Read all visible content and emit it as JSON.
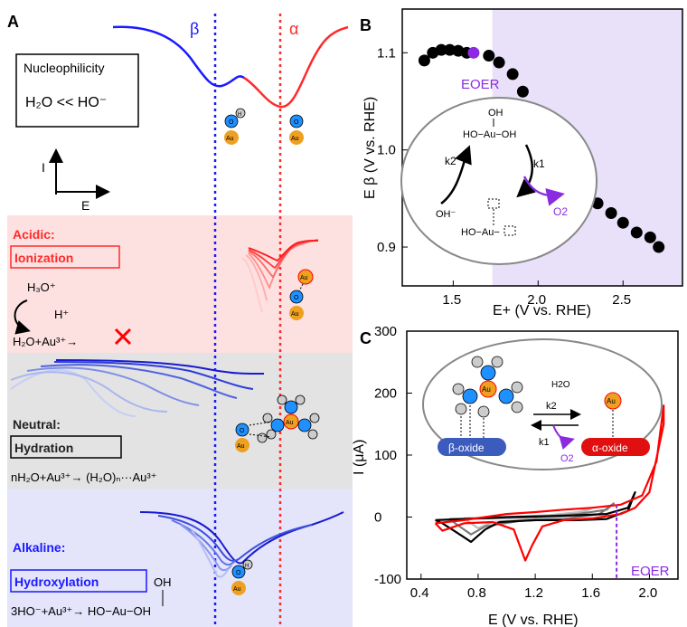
{
  "panel_a": {
    "label": "A",
    "beta": "β",
    "alpha": "α",
    "nucleophilicity_box": {
      "title": "Nucleophilicity",
      "relation": "H₂O << HO⁻"
    },
    "axis_i": "I",
    "axis_e": "E",
    "acidic": {
      "title": "Acidic:",
      "mechanism": "Ionization",
      "h3o": "H₃O⁺",
      "hplus": "H⁺",
      "reaction": "H₂O+Au³⁺→",
      "color": "#ff0000"
    },
    "neutral": {
      "title": "Neutral:",
      "mechanism": "Hydration",
      "reaction": "nH₂O+Au³⁺→ (H₂O)ₙ···Au³⁺"
    },
    "alkaline": {
      "title": "Alkaline:",
      "mechanism": "Hydroxylation",
      "reaction": "3HO⁻+Au³⁺→ HO−Au−OH",
      "oh": "OH",
      "color": "#1a1aff"
    }
  },
  "atoms": {
    "o": "O",
    "h": "H",
    "au": "Au"
  },
  "panel_b": {
    "label": "B",
    "ylabel": "E β (V vs. RHE)",
    "xlabel": "E+ (V vs. RHE)",
    "eoer": "EOER",
    "inset": {
      "oh": "OH",
      "top": "HO−Au−OH",
      "bottom": "HO−Au−",
      "k1": "k1",
      "k2": "k2",
      "ohminus": "OH⁻",
      "o2": "O2"
    },
    "shade_color": "#e9e0f9"
  },
  "panel_c": {
    "label": "C",
    "ylabel": "I (μA)",
    "xlabel": "E (V vs. RHE)",
    "eoer": "EOER",
    "inset": {
      "h2o": "H2O",
      "k2": "k2",
      "k1": "k1",
      "o2": "O2",
      "beta_oxide": "β-oxide",
      "alpha_oxide": "α-oxide"
    }
  },
  "chart_data": [
    {
      "type": "scatter",
      "panel": "B",
      "x": [
        1.33,
        1.38,
        1.43,
        1.48,
        1.53,
        1.58,
        1.62,
        1.71,
        1.77,
        1.85,
        1.91,
        1.98,
        2.06,
        2.13,
        2.2,
        2.28,
        2.35,
        2.43,
        2.5,
        2.58,
        2.66,
        2.71
      ],
      "y": [
        1.092,
        1.1,
        1.103,
        1.103,
        1.102,
        1.1,
        1.1,
        1.097,
        1.09,
        1.078,
        1.06,
        1.04,
        1.02,
        1.0,
        0.98,
        0.96,
        0.945,
        0.935,
        0.925,
        0.915,
        0.91,
        0.9
      ],
      "xlabel": "E+ (V vs. RHE)",
      "ylabel": "E β (V vs. RHE)",
      "xlim": [
        1.2,
        2.85
      ],
      "ylim": [
        0.86,
        1.145
      ],
      "xticks": [
        1.5,
        2.0,
        2.5
      ],
      "yticks": [
        0.9,
        1.0,
        1.1
      ],
      "highlight_x": 1.62,
      "shade_from_x": 1.73,
      "grid": false
    },
    {
      "type": "line",
      "panel": "C",
      "xlabel": "E (V vs. RHE)",
      "ylabel": "I (μA)",
      "xlim": [
        0.3,
        2.2
      ],
      "ylim": [
        -100,
        300
      ],
      "xticks": [
        0.4,
        0.8,
        1.2,
        1.6,
        2.0
      ],
      "yticks": [
        -100,
        0,
        100,
        200,
        300
      ],
      "eoer_x": 1.77,
      "series": [
        {
          "color": "#ff0000",
          "x": [
            0.5,
            0.7,
            1.0,
            1.2,
            1.4,
            1.6,
            1.8,
            1.95,
            2.05,
            2.1,
            2.1,
            2.0,
            1.9,
            1.8,
            1.6,
            1.4,
            1.25,
            1.18,
            1.13,
            1.05,
            0.9,
            0.7,
            0.55,
            0.5
          ],
          "y": [
            -10,
            -5,
            5,
            8,
            12,
            15,
            20,
            35,
            90,
            180,
            150,
            40,
            15,
            5,
            -2,
            -5,
            -15,
            -45,
            -70,
            -20,
            -8,
            -10,
            -22,
            -10
          ]
        },
        {
          "color": "#000000",
          "x": [
            0.5,
            0.7,
            1.0,
            1.4,
            1.7,
            1.85,
            1.9,
            1.85,
            1.7,
            1.5,
            1.2,
            0.95,
            0.85,
            0.75,
            0.65,
            0.55,
            0.5
          ],
          "y": [
            -5,
            -3,
            0,
            2,
            5,
            15,
            40,
            10,
            -3,
            -5,
            -5,
            -8,
            -20,
            -40,
            -25,
            -10,
            -5
          ]
        },
        {
          "color": "#7a7a7a",
          "x": [
            0.6,
            0.9,
            1.2,
            1.5,
            1.7,
            1.75,
            1.65,
            1.4,
            1.1,
            0.85,
            0.75,
            0.65,
            0.6
          ],
          "y": [
            -3,
            -2,
            0,
            5,
            12,
            22,
            5,
            -3,
            -6,
            -15,
            -28,
            -12,
            -3
          ]
        },
        {
          "color": "#bdbdbd",
          "x": [
            0.7,
            1.0,
            1.3,
            1.5,
            1.6,
            1.5,
            1.2,
            0.9,
            0.8,
            0.7
          ],
          "y": [
            -2,
            0,
            3,
            8,
            15,
            4,
            -3,
            -8,
            -18,
            -2
          ]
        }
      ]
    }
  ]
}
